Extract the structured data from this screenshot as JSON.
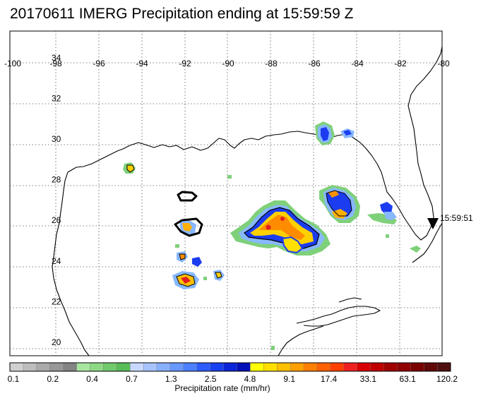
{
  "title": "20170611 IMERG Precipitation ending at 15:59:59 Z",
  "map": {
    "lon_range": [
      -100,
      -80
    ],
    "lat_range": [
      19.5,
      35
    ],
    "lon_ticks": [
      "-100",
      "-98",
      "-96",
      "-94",
      "-92",
      "-90",
      "-88",
      "-86",
      "-84",
      "-82",
      "-80"
    ],
    "lat_ticks": [
      "34",
      "32",
      "30",
      "28",
      "26",
      "24",
      "22",
      "20"
    ],
    "grid": "dotted",
    "time_marker_label": "15:59:51"
  },
  "colorbar": {
    "title": "Precipitation rate (mm/hr)",
    "tick_labels": [
      "0.1",
      "0.2",
      "0.4",
      "0.7",
      "1.3",
      "2.5",
      "4.8",
      "9.1",
      "17.4",
      "33.1",
      "63.1",
      "120.2"
    ],
    "colors": [
      "#d0d0d0",
      "#bdbdbd",
      "#aaaaaa",
      "#979797",
      "#848484",
      "#a8e6a0",
      "#8cd884",
      "#70ca6c",
      "#58bc58",
      "#c8d8ff",
      "#a8c4ff",
      "#88b0ff",
      "#6898ff",
      "#4c80ff",
      "#2c5cff",
      "#1840f0",
      "#0c24d8",
      "#0010b8",
      "#ffff00",
      "#ffe000",
      "#ffc000",
      "#ffa000",
      "#ff8000",
      "#ff6000",
      "#ff4000",
      "#f02020",
      "#d80000",
      "#c00000",
      "#a00000",
      "#900000",
      "#7a0000",
      "#600808",
      "#501010"
    ]
  }
}
